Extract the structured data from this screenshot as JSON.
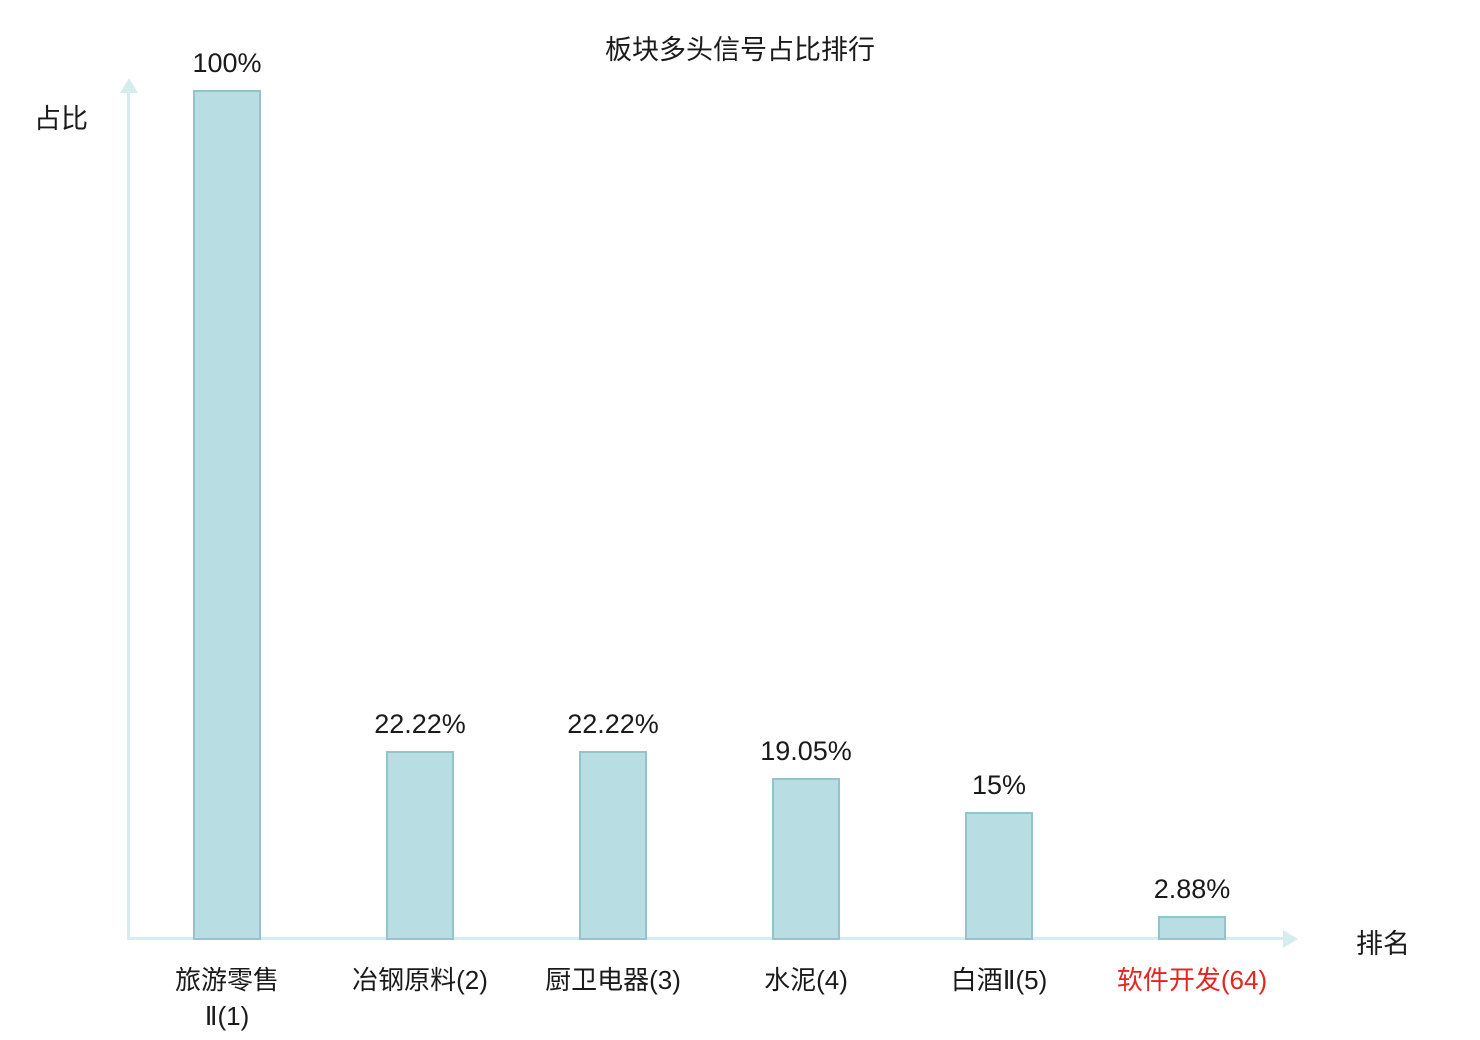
{
  "title": "板块多头信号占比排行",
  "axis_labels": {
    "y": "占比",
    "x": "排名"
  },
  "colors": {
    "bar_fill": "#b8dde2",
    "bar_border": "#93c4cb",
    "axis": "#d5edef",
    "text": "#1a1a1a",
    "highlight": "#e52520"
  },
  "chart_data": {
    "type": "bar",
    "title": "板块多头信号占比排行",
    "xlabel": "排名",
    "ylabel": "占比",
    "ylim": [
      0,
      100
    ],
    "grid": false,
    "legend": "none",
    "categories": [
      "旅游零售Ⅱ(1)",
      "冶钢原料(2)",
      "厨卫电器(3)",
      "水泥(4)",
      "白酒Ⅱ(5)",
      "软件开发(64)"
    ],
    "values": [
      100,
      22.22,
      22.22,
      19.05,
      15,
      2.88
    ],
    "value_labels": [
      "100%",
      "22.22%",
      "22.22%",
      "19.05%",
      "15%",
      "2.88%"
    ],
    "category_lines": [
      [
        "旅游零售",
        "Ⅱ(1)"
      ],
      [
        "冶钢原料(2)"
      ],
      [
        "厨卫电器(3)"
      ],
      [
        "水泥(4)"
      ],
      [
        "白酒Ⅱ(5)"
      ],
      [
        "软件开发(64)"
      ]
    ],
    "highlight_index": 5
  }
}
